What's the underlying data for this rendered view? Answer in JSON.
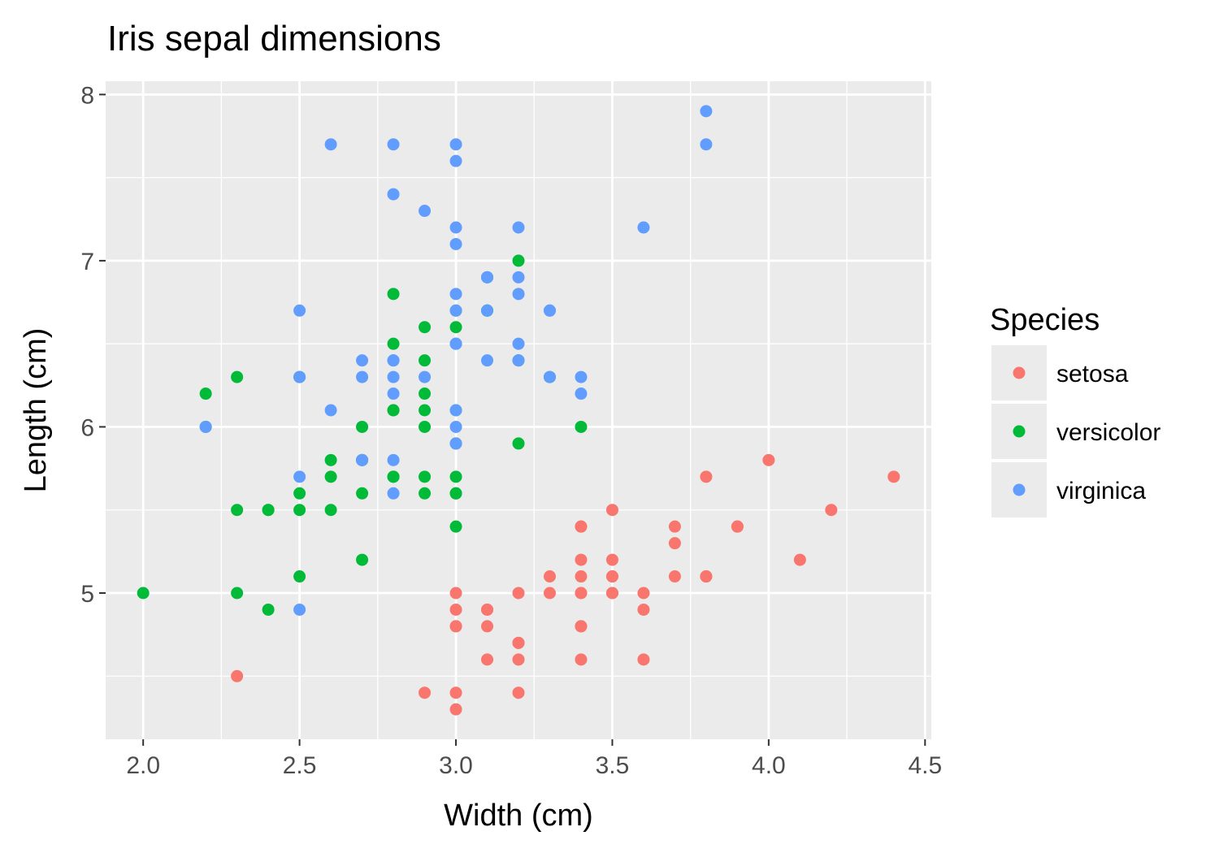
{
  "chart_data": {
    "type": "scatter",
    "title": "Iris sepal dimensions",
    "xlabel": "Width (cm)",
    "ylabel": "Length (cm)",
    "xlim": [
      1.88,
      4.52
    ],
    "ylim": [
      4.12,
      8.08
    ],
    "x_ticks": [
      2.0,
      2.5,
      3.0,
      3.5,
      4.0,
      4.5
    ],
    "x_tick_labels": [
      "2.0",
      "2.5",
      "3.0",
      "3.5",
      "4.0",
      "4.5"
    ],
    "y_ticks": [
      5,
      6,
      7,
      8
    ],
    "y_tick_labels": [
      "5",
      "6",
      "7",
      "8"
    ],
    "grid": true,
    "legend": {
      "title": "Species",
      "placement": "right"
    },
    "series": [
      {
        "name": "setosa",
        "color": "#F8766D",
        "points": [
          [
            3.5,
            5.1
          ],
          [
            3.0,
            4.9
          ],
          [
            3.2,
            4.7
          ],
          [
            3.1,
            4.6
          ],
          [
            3.6,
            5.0
          ],
          [
            3.9,
            5.4
          ],
          [
            3.4,
            4.6
          ],
          [
            3.4,
            5.0
          ],
          [
            2.9,
            4.4
          ],
          [
            3.1,
            4.9
          ],
          [
            3.7,
            5.4
          ],
          [
            3.4,
            4.8
          ],
          [
            3.0,
            4.8
          ],
          [
            3.0,
            4.3
          ],
          [
            4.0,
            5.8
          ],
          [
            4.4,
            5.7
          ],
          [
            3.9,
            5.4
          ],
          [
            3.5,
            5.1
          ],
          [
            3.8,
            5.7
          ],
          [
            3.8,
            5.1
          ],
          [
            3.4,
            5.4
          ],
          [
            3.7,
            5.1
          ],
          [
            3.6,
            4.6
          ],
          [
            3.3,
            5.1
          ],
          [
            3.4,
            4.8
          ],
          [
            3.0,
            5.0
          ],
          [
            3.4,
            5.0
          ],
          [
            3.5,
            5.2
          ],
          [
            3.4,
            5.2
          ],
          [
            3.2,
            4.7
          ],
          [
            3.1,
            4.8
          ],
          [
            3.4,
            5.4
          ],
          [
            4.1,
            5.2
          ],
          [
            4.2,
            5.5
          ],
          [
            3.1,
            4.9
          ],
          [
            3.2,
            5.0
          ],
          [
            3.5,
            5.5
          ],
          [
            3.6,
            4.9
          ],
          [
            3.0,
            4.4
          ],
          [
            3.4,
            5.1
          ],
          [
            3.5,
            5.0
          ],
          [
            2.3,
            4.5
          ],
          [
            3.2,
            4.4
          ],
          [
            3.5,
            5.0
          ],
          [
            3.8,
            5.1
          ],
          [
            3.0,
            4.8
          ],
          [
            3.8,
            5.1
          ],
          [
            3.2,
            4.6
          ],
          [
            3.7,
            5.3
          ],
          [
            3.3,
            5.0
          ]
        ]
      },
      {
        "name": "versicolor",
        "color": "#00BA38",
        "points": [
          [
            3.2,
            7.0
          ],
          [
            3.2,
            6.4
          ],
          [
            3.1,
            6.9
          ],
          [
            2.3,
            5.5
          ],
          [
            2.8,
            6.5
          ],
          [
            2.8,
            5.7
          ],
          [
            3.3,
            6.3
          ],
          [
            2.4,
            4.9
          ],
          [
            2.9,
            6.6
          ],
          [
            2.7,
            5.2
          ],
          [
            2.0,
            5.0
          ],
          [
            3.0,
            5.9
          ],
          [
            2.2,
            6.0
          ],
          [
            2.9,
            6.1
          ],
          [
            2.9,
            5.6
          ],
          [
            3.1,
            6.7
          ],
          [
            3.0,
            5.6
          ],
          [
            2.7,
            5.8
          ],
          [
            2.2,
            6.2
          ],
          [
            2.5,
            5.6
          ],
          [
            3.2,
            5.9
          ],
          [
            2.8,
            6.1
          ],
          [
            2.5,
            6.3
          ],
          [
            2.8,
            6.1
          ],
          [
            2.9,
            6.4
          ],
          [
            3.0,
            6.6
          ],
          [
            2.8,
            6.8
          ],
          [
            3.0,
            6.7
          ],
          [
            2.9,
            6.0
          ],
          [
            2.6,
            5.7
          ],
          [
            2.4,
            5.5
          ],
          [
            2.4,
            5.5
          ],
          [
            2.7,
            5.8
          ],
          [
            2.7,
            6.0
          ],
          [
            3.0,
            5.4
          ],
          [
            3.4,
            6.0
          ],
          [
            3.1,
            6.7
          ],
          [
            2.3,
            6.3
          ],
          [
            3.0,
            5.6
          ],
          [
            2.5,
            5.5
          ],
          [
            2.6,
            5.5
          ],
          [
            3.0,
            6.1
          ],
          [
            2.6,
            5.8
          ],
          [
            2.3,
            5.0
          ],
          [
            2.7,
            5.6
          ],
          [
            3.0,
            5.7
          ],
          [
            2.9,
            5.7
          ],
          [
            2.9,
            6.2
          ],
          [
            2.5,
            5.1
          ],
          [
            2.8,
            5.7
          ]
        ]
      },
      {
        "name": "virginica",
        "color": "#619CFF",
        "points": [
          [
            3.3,
            6.3
          ],
          [
            2.7,
            5.8
          ],
          [
            3.0,
            7.1
          ],
          [
            2.9,
            6.3
          ],
          [
            3.0,
            6.5
          ],
          [
            3.0,
            7.6
          ],
          [
            2.5,
            4.9
          ],
          [
            2.9,
            7.3
          ],
          [
            2.5,
            6.7
          ],
          [
            3.6,
            7.2
          ],
          [
            3.2,
            6.5
          ],
          [
            2.7,
            6.4
          ],
          [
            3.0,
            6.8
          ],
          [
            2.5,
            5.7
          ],
          [
            2.8,
            5.8
          ],
          [
            3.2,
            6.4
          ],
          [
            3.0,
            6.5
          ],
          [
            3.8,
            7.7
          ],
          [
            2.6,
            7.7
          ],
          [
            2.2,
            6.0
          ],
          [
            3.2,
            6.9
          ],
          [
            2.8,
            5.6
          ],
          [
            2.8,
            7.7
          ],
          [
            2.7,
            6.3
          ],
          [
            3.3,
            6.7
          ],
          [
            3.2,
            7.2
          ],
          [
            2.8,
            6.2
          ],
          [
            3.0,
            6.1
          ],
          [
            2.8,
            6.4
          ],
          [
            3.0,
            7.2
          ],
          [
            2.8,
            7.4
          ],
          [
            3.8,
            7.9
          ],
          [
            2.8,
            6.4
          ],
          [
            2.8,
            6.3
          ],
          [
            2.6,
            6.1
          ],
          [
            3.0,
            7.7
          ],
          [
            3.4,
            6.3
          ],
          [
            3.1,
            6.4
          ],
          [
            3.0,
            6.0
          ],
          [
            3.1,
            6.9
          ],
          [
            3.1,
            6.7
          ],
          [
            3.1,
            6.9
          ],
          [
            2.7,
            5.8
          ],
          [
            3.2,
            6.8
          ],
          [
            3.3,
            6.7
          ],
          [
            3.0,
            6.7
          ],
          [
            2.5,
            6.3
          ],
          [
            3.0,
            6.5
          ],
          [
            3.4,
            6.2
          ],
          [
            3.0,
            5.9
          ]
        ]
      }
    ]
  }
}
